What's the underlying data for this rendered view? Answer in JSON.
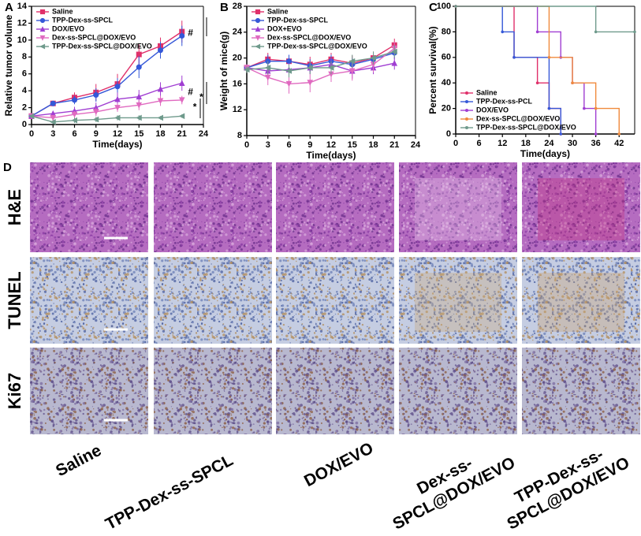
{
  "chart_data": [
    {
      "type": "line",
      "panel_label": "A",
      "x_label": "Time(days)",
      "y_label": "Relative tumor volume",
      "x": [
        0,
        3,
        6,
        9,
        12,
        15,
        18,
        21
      ],
      "xlim": [
        0,
        24
      ],
      "xticks": [
        0,
        3,
        6,
        9,
        12,
        15,
        18,
        21,
        24
      ],
      "ylim": [
        0,
        14
      ],
      "yticks": [
        0,
        2,
        4,
        6,
        8,
        10,
        12,
        14
      ],
      "legend": "upper left",
      "series": [
        {
          "name": "Saline",
          "color": "#e0306a",
          "marker": "square",
          "values": [
            1,
            2.5,
            3.2,
            3.8,
            4.8,
            8.3,
            9.3,
            11.0
          ],
          "errors": [
            0,
            0.3,
            0.6,
            1.0,
            1.2,
            1.2,
            1.0,
            1.3
          ]
        },
        {
          "name": "TPP-Dex-ss-SPCL",
          "color": "#3558d8",
          "marker": "circle",
          "values": [
            1,
            2.5,
            2.9,
            3.5,
            4.5,
            6.8,
            8.8,
            10.5
          ],
          "errors": [
            0,
            0.3,
            0.5,
            0.8,
            1.0,
            1.3,
            1.0,
            1.2
          ]
        },
        {
          "name": "DOX/EVO",
          "color": "#a03ed2",
          "marker": "triangle",
          "values": [
            1,
            1.3,
            1.6,
            2.0,
            3.0,
            3.3,
            4.2,
            4.9
          ],
          "errors": [
            0,
            0.3,
            0.5,
            0.6,
            0.8,
            0.8,
            0.8,
            0.9
          ]
        },
        {
          "name": "Dex-ss-SPCL@DOX/EVO",
          "color": "#e06ac0",
          "marker": "triangle-down",
          "values": [
            1,
            0.8,
            1.2,
            1.5,
            2.0,
            2.3,
            2.8,
            2.9
          ],
          "errors": [
            0,
            0.3,
            0.4,
            0.5,
            0.5,
            0.6,
            0.6,
            0.5
          ]
        },
        {
          "name": "TPP-Dex-ss-SPCL@DOX/EVO",
          "color": "#6f9a8c",
          "marker": "triangle-left",
          "values": [
            1,
            0.3,
            0.5,
            0.6,
            0.8,
            0.8,
            0.8,
            1.0
          ],
          "errors": [
            0,
            0.2,
            0.3,
            0.3,
            0.3,
            0.3,
            0.2,
            0.2
          ]
        }
      ],
      "annotations": [
        {
          "text": "#",
          "x": 22.2,
          "y": 10.8
        },
        {
          "text": "#",
          "x": 22.2,
          "y": 3.8
        },
        {
          "text": "*",
          "x": 22.8,
          "y": 2.0
        },
        {
          "text": "*",
          "x": 23.7,
          "y": 3.2
        }
      ]
    },
    {
      "type": "line",
      "panel_label": "B",
      "x_label": "Time(days)",
      "y_label": "Weight of mice(g)",
      "x": [
        0,
        3,
        6,
        9,
        12,
        15,
        18,
        21
      ],
      "xlim": [
        0,
        24
      ],
      "xticks": [
        0,
        3,
        6,
        9,
        12,
        15,
        18,
        21,
        24
      ],
      "ylim": [
        8,
        28
      ],
      "yticks": [
        8,
        12,
        16,
        20,
        24,
        28
      ],
      "legend": "upper left",
      "series": [
        {
          "name": "Saline",
          "color": "#e0306a",
          "marker": "square",
          "values": [
            18.5,
            19.8,
            19.5,
            19.0,
            19.8,
            19.2,
            20.0,
            22.0
          ],
          "errors": [
            0.5,
            1.0,
            1.0,
            1.2,
            1.0,
            1.2,
            1.0,
            1.0
          ]
        },
        {
          "name": "TPP-Dex-ss-SPCL",
          "color": "#3558d8",
          "marker": "circle",
          "values": [
            18.5,
            19.5,
            19.5,
            18.8,
            19.5,
            19.0,
            19.8,
            20.8
          ],
          "errors": [
            0.5,
            1.0,
            1.0,
            1.0,
            1.0,
            1.0,
            1.0,
            1.0
          ]
        },
        {
          "name": "DOX+EVO",
          "color": "#a03ed2",
          "marker": "triangle",
          "values": [
            18.5,
            18.0,
            18.2,
            18.5,
            19.0,
            18.0,
            18.5,
            19.2
          ],
          "errors": [
            0.5,
            1.0,
            1.0,
            1.0,
            1.0,
            1.2,
            1.0,
            1.0
          ]
        },
        {
          "name": "Dex-ss-SPCL@DOX/EVO",
          "color": "#e06ac0",
          "marker": "triangle-down",
          "values": [
            18.5,
            17.0,
            16.0,
            16.2,
            17.5,
            18.0,
            19.0,
            21.5
          ],
          "errors": [
            0.5,
            1.2,
            1.5,
            1.5,
            1.2,
            1.5,
            1.2,
            1.0
          ]
        },
        {
          "name": "TPP-Dex-ss-SPCL@DOX/EVO",
          "color": "#6f9a8c",
          "marker": "triangle-left",
          "values": [
            18.2,
            18.5,
            18.0,
            18.5,
            18.5,
            19.5,
            20.0,
            21.0
          ],
          "errors": [
            0.5,
            1.0,
            1.0,
            1.0,
            1.0,
            1.0,
            1.0,
            1.0
          ]
        }
      ]
    },
    {
      "type": "step",
      "panel_label": "C",
      "x_label": "Time(days)",
      "y_label": "Percent survival(%)",
      "xlim": [
        0,
        46
      ],
      "xticks": [
        0,
        6,
        12,
        18,
        24,
        30,
        36,
        42
      ],
      "ylim": [
        0,
        100
      ],
      "yticks": [
        0,
        20,
        40,
        60,
        80,
        100
      ],
      "legend": "lower left",
      "series": [
        {
          "name": "Saline",
          "color": "#e0306a",
          "x": [
            0,
            15,
            21,
            24,
            27
          ],
          "values": [
            100,
            60,
            40,
            20,
            0
          ]
        },
        {
          "name": "TPP-Dex-ss-PCL",
          "color": "#3558d8",
          "x": [
            0,
            12,
            15,
            24,
            27
          ],
          "values": [
            100,
            80,
            60,
            20,
            0
          ]
        },
        {
          "name": "DOX/EVO",
          "color": "#a03ed2",
          "x": [
            0,
            21,
            27,
            30,
            33,
            36
          ],
          "values": [
            100,
            80,
            60,
            40,
            20,
            0
          ]
        },
        {
          "name": "Dex-ss-SPCL@DOX/EVO",
          "color": "#f08a3c",
          "x": [
            0,
            24,
            30,
            36,
            42
          ],
          "values": [
            100,
            60,
            40,
            20,
            0
          ]
        },
        {
          "name": "TPP-Dex-ss-SPCL@DOX/EVO",
          "color": "#6f9a8c",
          "x": [
            0,
            36,
            46
          ],
          "values": [
            100,
            80,
            80
          ]
        }
      ]
    }
  ],
  "images": {
    "label": "D",
    "row_labels": [
      "H&E",
      "TUNEL",
      "Ki67"
    ],
    "column_labels": [
      [
        "Saline"
      ],
      [
        "TPP-Dex-ss-SPCL"
      ],
      [
        "DOX/EVO"
      ],
      [
        "Dex-ss-",
        "SPCL@DOX/EVO"
      ],
      [
        "TPP-Dex-ss-",
        "SPCL@DOX/EVO"
      ]
    ]
  }
}
